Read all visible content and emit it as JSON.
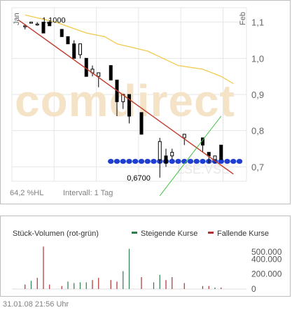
{
  "price_chart": {
    "footer": {
      "volatility": "64,2 %HL",
      "interval": "Intervall: 1 Tag"
    },
    "watermark": "comdirect",
    "watermark_sub": "LSE.VSE",
    "colors": {
      "grid": "#e6e6e6",
      "candle": "#000000",
      "moving_average": "#f2c94c",
      "downtrend": "#c0392b",
      "uptrend": "#3ec13e",
      "support_dots": "#1f3fd0",
      "watermark": "#f5e3c8"
    }
  },
  "chart_data": [
    {
      "type": "candlestick",
      "x": [
        "Jan",
        "",
        "",
        "",
        "",
        "",
        "",
        "",
        "",
        "",
        "",
        "",
        "",
        "",
        "",
        "",
        "",
        "",
        "",
        "",
        "",
        "",
        "",
        "",
        "",
        "",
        "",
        "",
        "",
        "",
        "",
        "",
        "",
        "",
        "",
        "",
        "Feb"
      ],
      "xlabel": "",
      "ylabel": "",
      "y_ticks": [
        "1,1",
        "1,0",
        "0,9",
        "0,8",
        "0,7"
      ],
      "ylim": [
        0.66,
        1.14
      ],
      "grid": true,
      "candles": [
        {
          "o": 1.09,
          "h": 1.095,
          "l": 1.08,
          "c": 1.09
        },
        {
          "o": 1.1,
          "h": 1.1,
          "l": 1.1,
          "c": 1.1
        },
        {
          "o": 1.095,
          "h": 1.1,
          "l": 1.09,
          "c": 1.095
        },
        {
          "o": 1.1,
          "h": 1.1,
          "l": 1.07,
          "c": 1.07
        },
        {
          "o": 1.1,
          "h": 1.105,
          "l": 1.09,
          "c": 1.09
        },
        {
          "o": 1.08,
          "h": 1.08,
          "l": 1.06,
          "c": 1.06
        },
        {
          "o": 1.06,
          "h": 1.06,
          "l": 1.04,
          "c": 1.04
        },
        {
          "o": 1.04,
          "h": 1.05,
          "l": 1.0,
          "c": 1.0
        },
        {
          "o": 1.01,
          "h": 1.04,
          "l": 1.0,
          "c": 1.04
        },
        {
          "o": 1.0,
          "h": 1.0,
          "l": 0.95,
          "c": 0.95
        },
        {
          "o": 0.96,
          "h": 0.98,
          "l": 0.95,
          "c": 0.97
        },
        {
          "o": 0.95,
          "h": 0.96,
          "l": 0.92,
          "c": 0.96
        },
        {
          "o": 0.98,
          "h": 0.98,
          "l": 0.94,
          "c": 0.94
        },
        {
          "o": 0.94,
          "h": 0.94,
          "l": 0.84,
          "c": 0.88
        },
        {
          "o": 0.88,
          "h": 0.9,
          "l": 0.86,
          "c": 0.9
        },
        {
          "o": 0.9,
          "h": 0.9,
          "l": 0.82,
          "c": 0.84
        },
        {
          "o": 0.85,
          "h": 0.85,
          "l": 0.79,
          "c": 0.79
        },
        {
          "o": 0.72,
          "h": 0.78,
          "l": 0.67,
          "c": 0.77
        },
        {
          "o": 0.73,
          "h": 0.75,
          "l": 0.7,
          "c": 0.71
        },
        {
          "o": 0.73,
          "h": 0.75,
          "l": 0.72,
          "c": 0.74
        },
        {
          "o": 0.78,
          "h": 0.79,
          "l": 0.76,
          "c": 0.79
        },
        {
          "o": 0.78,
          "h": 0.78,
          "l": 0.74,
          "c": 0.76
        },
        {
          "o": 0.74,
          "h": 0.74,
          "l": 0.71,
          "c": 0.73
        },
        {
          "o": 0.72,
          "h": 0.73,
          "l": 0.71,
          "c": 0.73
        },
        {
          "o": 0.76,
          "h": 0.76,
          "l": 0.72,
          "c": 0.72
        }
      ],
      "candle_x": [
        1,
        2,
        3,
        4,
        5,
        7,
        8,
        9,
        10,
        11,
        12,
        13,
        15,
        16,
        17,
        18,
        20,
        23,
        24,
        25,
        27,
        30,
        31,
        32,
        33
      ],
      "moving_average": [
        [
          1,
          1.12
        ],
        [
          6,
          1.1
        ],
        [
          11,
          1.07
        ],
        [
          14,
          1.06
        ],
        [
          16,
          1.04
        ],
        [
          21,
          1.02
        ],
        [
          26,
          0.98
        ],
        [
          30,
          0.97
        ],
        [
          33,
          0.95
        ],
        [
          35,
          0.93
        ]
      ],
      "downtrend": [
        [
          0,
          1.105
        ],
        [
          35,
          0.68
        ]
      ],
      "uptrend": [
        [
          23,
          0.62
        ],
        [
          33,
          0.84
        ]
      ],
      "support_level": 0.715,
      "support_from_x": 15,
      "support_to_x": 36,
      "annotations": [
        {
          "label": "1,1000",
          "x": 4,
          "y": 1.1
        },
        {
          "label": "0,6700",
          "x": 23,
          "y": 0.67
        }
      ]
    },
    {
      "type": "bar",
      "title": "Stück-Volumen (rot-grün)",
      "series": [
        {
          "name": "Steigende Kurse",
          "color": "#2e7d4f"
        },
        {
          "name": "Fallende Kurse",
          "color": "#b03030"
        }
      ],
      "y_ticks": [
        "500.000",
        "400.000",
        "200.000",
        "0"
      ],
      "ylim": [
        0,
        620000
      ],
      "bars_x": [
        1,
        2,
        3,
        4,
        5,
        7,
        8,
        9,
        10,
        11,
        12,
        13,
        15,
        16,
        17,
        18,
        20,
        22,
        23,
        24,
        25,
        27,
        30,
        31,
        32,
        33
      ],
      "bars": [
        {
          "v": 60000,
          "dir": "down"
        },
        {
          "v": 110000,
          "dir": "up"
        },
        {
          "v": 150000,
          "dir": "down"
        },
        {
          "v": 570000,
          "dir": "down"
        },
        {
          "v": 60000,
          "dir": "down"
        },
        {
          "v": 40000,
          "dir": "down"
        },
        {
          "v": 100000,
          "dir": "up"
        },
        {
          "v": 80000,
          "dir": "up"
        },
        {
          "v": 90000,
          "dir": "up"
        },
        {
          "v": 90000,
          "dir": "up"
        },
        {
          "v": 120000,
          "dir": "down"
        },
        {
          "v": 150000,
          "dir": "down"
        },
        {
          "v": 120000,
          "dir": "down"
        },
        {
          "v": 100000,
          "dir": "down"
        },
        {
          "v": 240000,
          "dir": "up"
        },
        {
          "v": 540000,
          "dir": "up"
        },
        {
          "v": 160000,
          "dir": "down"
        },
        {
          "v": 90000,
          "dir": "up"
        },
        {
          "v": 190000,
          "dir": "up"
        },
        {
          "v": 120000,
          "dir": "down"
        },
        {
          "v": 160000,
          "dir": "down"
        },
        {
          "v": 80000,
          "dir": "down"
        },
        {
          "v": 40000,
          "dir": "down"
        },
        {
          "v": 40000,
          "dir": "down"
        },
        {
          "v": 20000,
          "dir": "up"
        },
        {
          "v": 20000,
          "dir": "down"
        }
      ]
    }
  ],
  "timestamp": "31.01.08   21:56 Uhr"
}
